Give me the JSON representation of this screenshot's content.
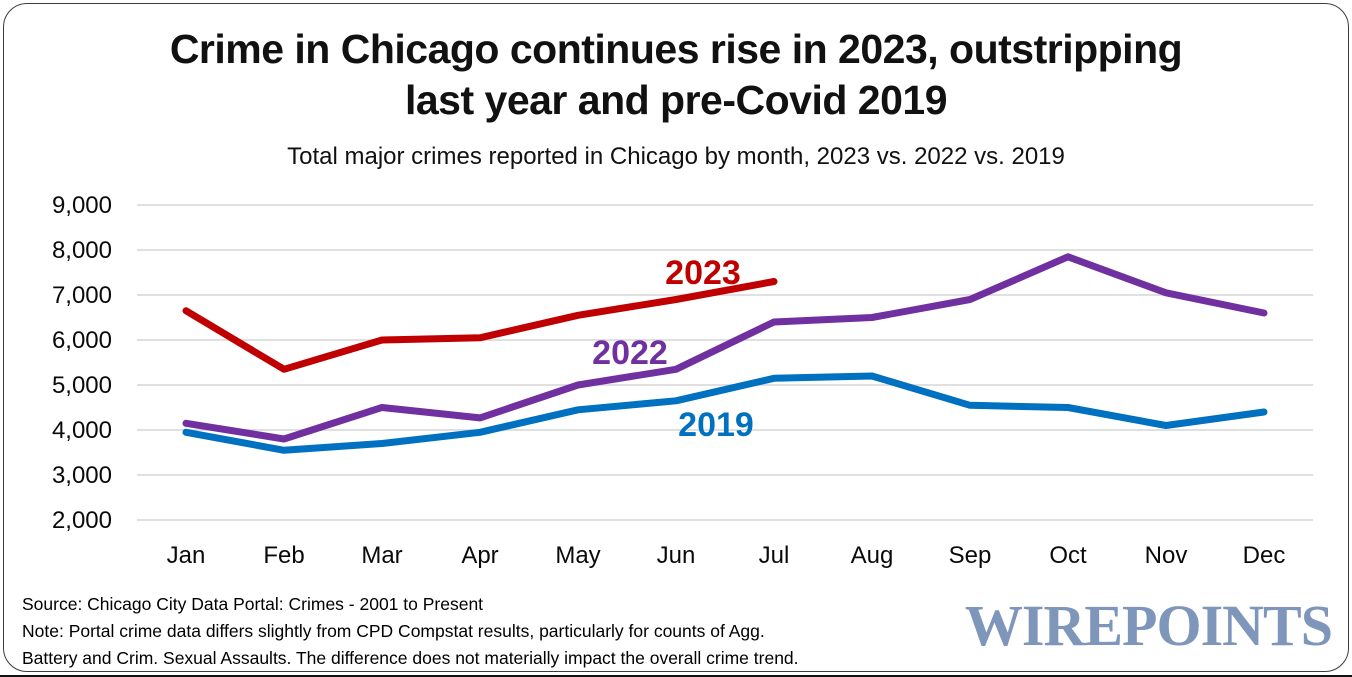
{
  "page": {
    "title_line1": "Crime in Chicago continues rise in 2023, outstripping",
    "title_line2": "last year and pre-Covid 2019",
    "subtitle": "Total major crimes reported in Chicago by month, 2023 vs. 2022 vs. 2019"
  },
  "chart_data": {
    "type": "line",
    "title": "Crime in Chicago continues rise in 2023, outstripping last year and pre-Covid 2019",
    "subtitle": "Total major crimes reported in Chicago by month, 2023 vs. 2022 vs. 2019",
    "categories": [
      "Jan",
      "Feb",
      "Mar",
      "Apr",
      "May",
      "Jun",
      "Jul",
      "Aug",
      "Sep",
      "Oct",
      "Nov",
      "Dec"
    ],
    "series": [
      {
        "name": "2019",
        "color": "#0070C0",
        "values": [
          3950,
          3550,
          3700,
          3950,
          4450,
          4650,
          5150,
          5200,
          4550,
          4500,
          4100,
          4400
        ]
      },
      {
        "name": "2022",
        "color": "#7030A0",
        "values": [
          4150,
          3800,
          4500,
          4270,
          5000,
          5350,
          6400,
          6500,
          6900,
          7850,
          7050,
          6600
        ]
      },
      {
        "name": "2023",
        "color": "#C00000",
        "values": [
          6650,
          5350,
          6000,
          6050,
          6550,
          6900,
          7300
        ]
      }
    ],
    "ylim": [
      2000,
      9000
    ],
    "ytick_step": 1000,
    "ytick_labels": [
      "2,000",
      "3,000",
      "4,000",
      "5,000",
      "6,000",
      "7,000",
      "8,000",
      "9,000"
    ],
    "grid": "horizontal-only",
    "gridline_color": "#D6D6D6",
    "legend": "inline-series-labels",
    "xlabel": "",
    "ylabel": ""
  },
  "footer": {
    "line1": "Source: Chicago City Data Portal: Crimes - 2001 to Present",
    "line2": "Note: Portal crime data differs slightly from CPD Compstat results, particularly for counts of Agg.",
    "line3": "Battery and Crim. Sexual Assaults. The difference does not materially impact the overall crime trend."
  },
  "logo": {
    "text": "WIREPOINTS",
    "color": "#7E96BA"
  }
}
